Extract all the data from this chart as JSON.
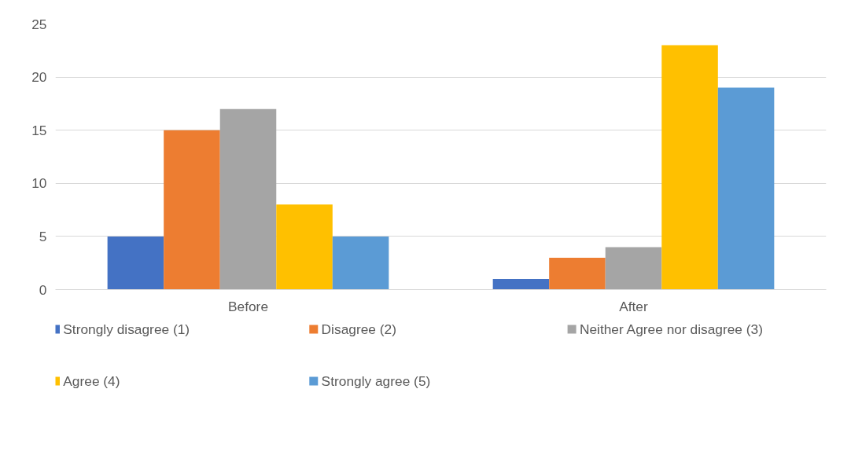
{
  "chart_data": {
    "type": "bar",
    "categories": [
      "Before",
      "After"
    ],
    "series": [
      {
        "name": "Strongly disagree (1)",
        "color": "#4472c4",
        "values": [
          5,
          1
        ]
      },
      {
        "name": "Disagree (2)",
        "color": "#ed7d31",
        "values": [
          15,
          3
        ]
      },
      {
        "name": "Neither Agree nor disagree (3)",
        "color": "#a5a5a5",
        "values": [
          17,
          4
        ]
      },
      {
        "name": "Agree (4)",
        "color": "#ffc000",
        "values": [
          8,
          23
        ]
      },
      {
        "name": "Strongly agree (5)",
        "color": "#5b9bd5",
        "values": [
          5,
          19
        ]
      }
    ],
    "ylim": [
      0,
      25
    ],
    "yticks": [
      0,
      5,
      10,
      15,
      20,
      25
    ],
    "grid": "y",
    "legend": "bottom"
  }
}
